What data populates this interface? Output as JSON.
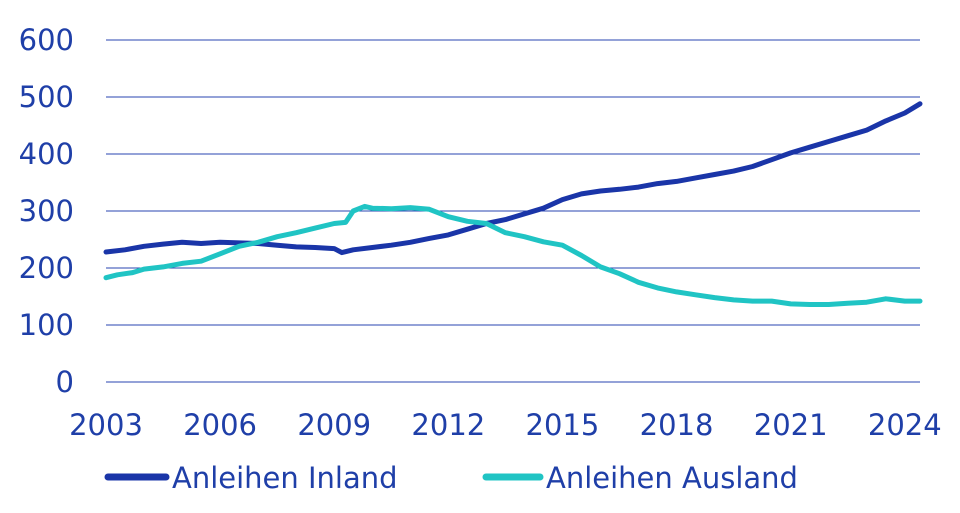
{
  "chart_data": {
    "type": "line",
    "title": "",
    "xlabel": "",
    "ylabel": "",
    "xlim": [
      2003,
      2024.4
    ],
    "ylim": [
      0,
      600
    ],
    "x_ticks": [
      "2003",
      "2006",
      "2009",
      "2012",
      "2015",
      "2018",
      "2021",
      "2024"
    ],
    "y_ticks": [
      "0",
      "100",
      "200",
      "300",
      "400",
      "500",
      "600"
    ],
    "grid": "horizontal",
    "legend_position": "bottom",
    "series": [
      {
        "name": "Anleihen Inland",
        "color": "#1a35a8",
        "x": [
          2003.0,
          2003.5,
          2004.0,
          2004.5,
          2005.0,
          2005.5,
          2006.0,
          2006.5,
          2007.0,
          2007.5,
          2008.0,
          2008.5,
          2009.0,
          2009.2,
          2009.5,
          2010.0,
          2010.5,
          2011.0,
          2011.5,
          2012.0,
          2012.5,
          2013.0,
          2013.5,
          2014.0,
          2014.5,
          2015.0,
          2015.5,
          2016.0,
          2016.5,
          2017.0,
          2017.5,
          2018.0,
          2018.5,
          2019.0,
          2019.5,
          2020.0,
          2020.5,
          2021.0,
          2021.5,
          2022.0,
          2022.5,
          2023.0,
          2023.5,
          2024.0,
          2024.4
        ],
        "values": [
          228,
          232,
          238,
          242,
          245,
          243,
          245,
          244,
          243,
          240,
          237,
          236,
          234,
          227,
          232,
          236,
          240,
          245,
          252,
          258,
          268,
          278,
          285,
          295,
          305,
          320,
          330,
          335,
          338,
          342,
          348,
          352,
          358,
          364,
          370,
          378,
          390,
          402,
          412,
          422,
          432,
          442,
          458,
          472,
          488
        ]
      },
      {
        "name": "Anleihen Ausland",
        "color": "#20c4c4",
        "x": [
          2003.0,
          2003.3,
          2003.7,
          2004.0,
          2004.5,
          2005.0,
          2005.5,
          2006.0,
          2006.5,
          2007.0,
          2007.5,
          2008.0,
          2008.5,
          2009.0,
          2009.3,
          2009.5,
          2009.8,
          2010.0,
          2010.5,
          2011.0,
          2011.5,
          2012.0,
          2012.5,
          2013.0,
          2013.5,
          2014.0,
          2014.5,
          2015.0,
          2015.5,
          2016.0,
          2016.5,
          2017.0,
          2017.5,
          2018.0,
          2018.5,
          2019.0,
          2019.5,
          2020.0,
          2020.5,
          2021.0,
          2021.5,
          2022.0,
          2022.5,
          2023.0,
          2023.5,
          2024.0,
          2024.4
        ],
        "values": [
          183,
          188,
          192,
          198,
          202,
          208,
          212,
          225,
          238,
          245,
          255,
          262,
          270,
          278,
          280,
          300,
          308,
          305,
          304,
          306,
          303,
          290,
          282,
          278,
          262,
          255,
          246,
          240,
          222,
          202,
          190,
          175,
          165,
          158,
          153,
          148,
          144,
          142,
          142,
          137,
          136,
          136,
          138,
          140,
          146,
          142,
          142
        ]
      }
    ]
  }
}
